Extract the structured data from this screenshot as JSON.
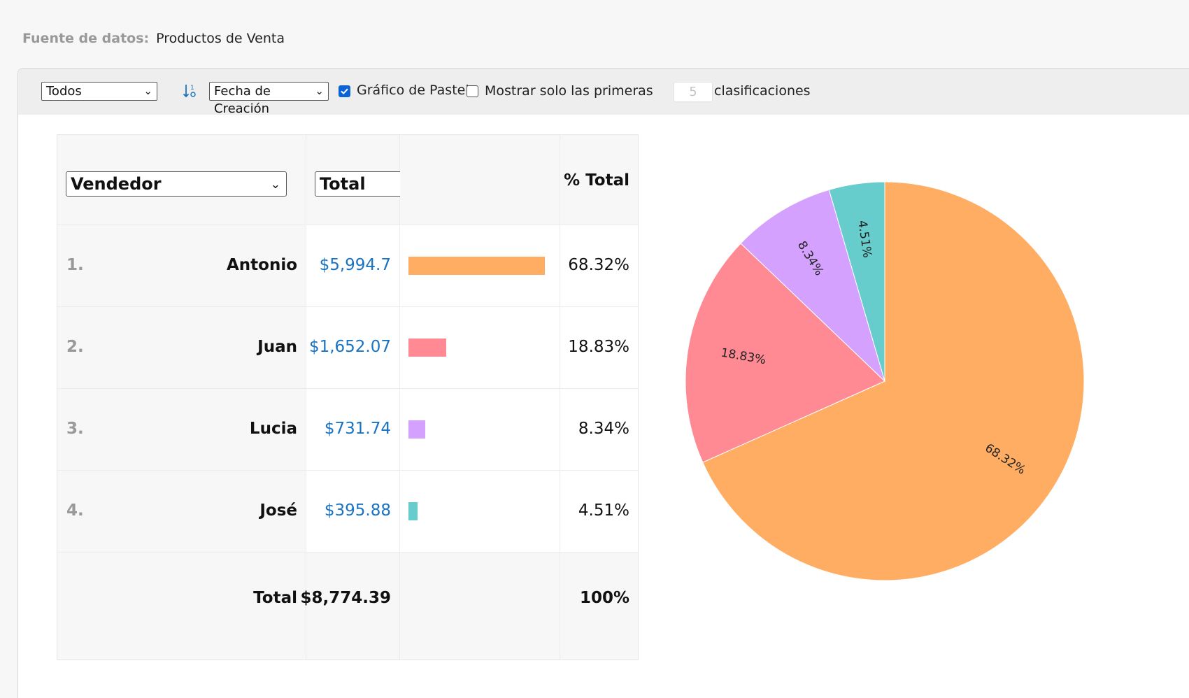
{
  "datasource": {
    "label": "Fuente de datos:",
    "value": "Productos de Venta"
  },
  "toolbar": {
    "filter_select": "Todos",
    "sort_icon": "sort-ascending-icon",
    "date_select": "Fecha de Creación",
    "pie_checkbox": {
      "label": "Gráfico de Pastel",
      "checked": true
    },
    "topn_checkbox": {
      "label_before": "Mostrar solo las primeras",
      "label_after": "clasificaciones",
      "checked": false
    },
    "topn_input_placeholder": "5"
  },
  "table": {
    "header": {
      "group_select": "Vendedor",
      "measure_select": "Total",
      "pct_label": "% Total"
    },
    "rows": [
      {
        "rank": "1.",
        "name": "Antonio",
        "amount": "$5,994.7",
        "pct": "68.32%",
        "share": 0.6832,
        "color": "#FFAD62"
      },
      {
        "rank": "2.",
        "name": "Juan",
        "amount": "$1,652.07",
        "pct": "18.83%",
        "share": 0.1883,
        "color": "#FF8A94"
      },
      {
        "rank": "3.",
        "name": "Lucia",
        "amount": "$731.74",
        "pct": "8.34%",
        "share": 0.0834,
        "color": "#D5A1FF"
      },
      {
        "rank": "4.",
        "name": "José",
        "amount": "$395.88",
        "pct": "4.51%",
        "share": 0.0451,
        "color": "#66CCCC"
      }
    ],
    "footer": {
      "label": "Total",
      "amount": "$8,774.39",
      "pct": "100%"
    }
  },
  "chart_data": {
    "type": "pie",
    "categories": [
      "Antonio",
      "Juan",
      "Lucia",
      "José"
    ],
    "values": [
      5994.7,
      1652.07,
      731.74,
      395.88
    ],
    "labels": [
      "68.32%",
      "18.83%",
      "8.34%",
      "4.51%"
    ],
    "colors": [
      "#FFAD62",
      "#FF8A94",
      "#D5A1FF",
      "#66CCCC"
    ],
    "start": "12 o'clock",
    "direction": "clockwise"
  }
}
